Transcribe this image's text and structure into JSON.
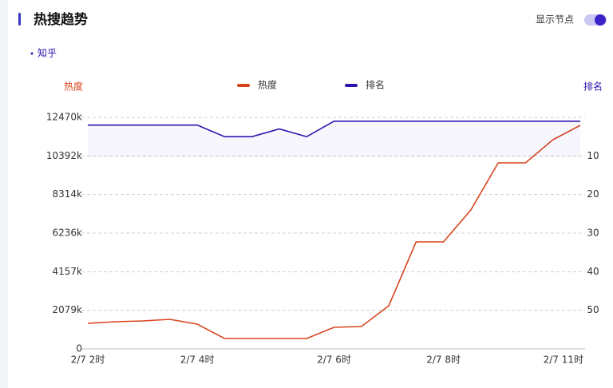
{
  "header": {
    "title": "热搜趋势",
    "toggle_label": "显示节点",
    "source": "知乎"
  },
  "chart_data": {
    "type": "line",
    "ylabel": "热度",
    "y2label": "排名",
    "categories": [
      "2/7 2时",
      null,
      null,
      null,
      "2/7 4时",
      null,
      null,
      null,
      null,
      "2/7 6时",
      null,
      null,
      null,
      "2/7 8时",
      null,
      null,
      null,
      null,
      "2/7 11时"
    ],
    "series": [
      {
        "name": "热度",
        "color": "#d9441c",
        "values": [
          1376,
          1462,
          1505,
          1591,
          1333,
          559,
          559,
          559,
          559,
          1161,
          1204,
          2322,
          5762,
          5762,
          7482,
          10019,
          10019,
          11266,
          12040
        ]
      },
      {
        "name": "排名",
        "color": "#2b17b0",
        "axis": "y2",
        "values": [
          2,
          2,
          2,
          2,
          2,
          5,
          5,
          3,
          5,
          1,
          1,
          1,
          1,
          1,
          1,
          1,
          1,
          1,
          1
        ]
      }
    ],
    "ylim": [
      0,
      12470
    ],
    "yticks": [
      0,
      {
        "value": 2079,
        "label": "2079k"
      },
      {
        "value": 4157,
        "label": "4157k"
      },
      {
        "value": 6236,
        "label": "6236k"
      },
      {
        "value": 8314,
        "label": "8314k"
      },
      {
        "value": 10392,
        "label": "10392k"
      },
      {
        "value": 12470,
        "label": "12470k"
      }
    ],
    "y2lim": [
      0,
      60
    ],
    "y2ticks": [
      10,
      20,
      30,
      40,
      50
    ],
    "y2_inverted": true,
    "grid": true,
    "legend": "top"
  }
}
